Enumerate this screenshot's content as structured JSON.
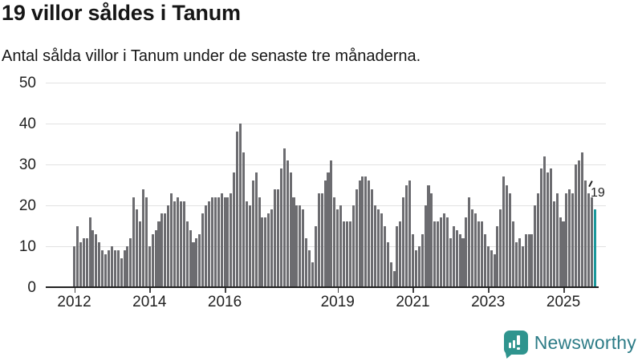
{
  "header": {
    "title": "19 villor såldes i Tanum",
    "subtitle": "Antal sålda villor i Tanum under de senaste tre månaderna."
  },
  "chart_data": {
    "type": "bar",
    "title": "19 villor såldes i Tanum",
    "subtitle": "Antal sålda villor i Tanum under de senaste tre månaderna.",
    "x_start": "2012-01",
    "values": [
      10,
      15,
      11,
      12,
      12,
      17,
      14,
      13,
      11,
      9,
      8,
      9,
      10,
      9,
      9,
      7,
      9,
      10,
      12,
      22,
      19,
      16,
      24,
      22,
      10,
      13,
      14,
      16,
      18,
      18,
      20,
      23,
      21,
      22,
      21,
      21,
      16,
      14,
      11,
      12,
      13,
      18,
      20,
      21,
      22,
      22,
      22,
      23,
      22,
      22,
      23,
      28,
      38,
      40,
      33,
      21,
      20,
      26,
      28,
      22,
      17,
      17,
      18,
      19,
      24,
      24,
      29,
      34,
      31,
      28,
      22,
      20,
      20,
      19,
      12,
      9,
      6,
      15,
      23,
      23,
      26,
      28,
      31,
      22,
      19,
      20,
      16,
      16,
      16,
      20,
      24,
      26,
      27,
      27,
      26,
      24,
      20,
      19,
      18,
      15,
      11,
      6,
      4,
      15,
      16,
      22,
      25,
      26,
      13,
      9,
      10,
      13,
      20,
      25,
      23,
      16,
      16,
      17,
      18,
      17,
      12,
      15,
      14,
      13,
      12,
      17,
      22,
      19,
      18,
      16,
      16,
      13,
      10,
      9,
      8,
      15,
      19,
      27,
      25,
      23,
      16,
      11,
      12,
      10,
      13,
      13,
      13,
      20,
      23,
      29,
      32,
      28,
      29,
      21,
      23,
      17,
      16,
      23,
      24,
      23,
      30,
      31,
      33,
      26,
      23,
      22,
      19
    ],
    "x_tick_labels": [
      "2012",
      "2014",
      "2016",
      "2019",
      "2021",
      "2023",
      "2025"
    ],
    "x_tick_month_index": [
      0,
      24,
      48,
      84,
      108,
      132,
      156
    ],
    "y_ticks": [
      0,
      10,
      20,
      30,
      40,
      50
    ],
    "ylim": [
      0,
      50
    ],
    "grid": true,
    "legend": "none",
    "bar_color": "#6c6c70",
    "highlight_color": "#1a989b",
    "highlight_last": true,
    "last_value_label": "19"
  },
  "footer": {
    "brand": "Newsworthy",
    "brand_color": "#2d7c87",
    "logo_color": "#2f948e",
    "logo_icon": "newsworthy-chart-bubble-icon"
  }
}
